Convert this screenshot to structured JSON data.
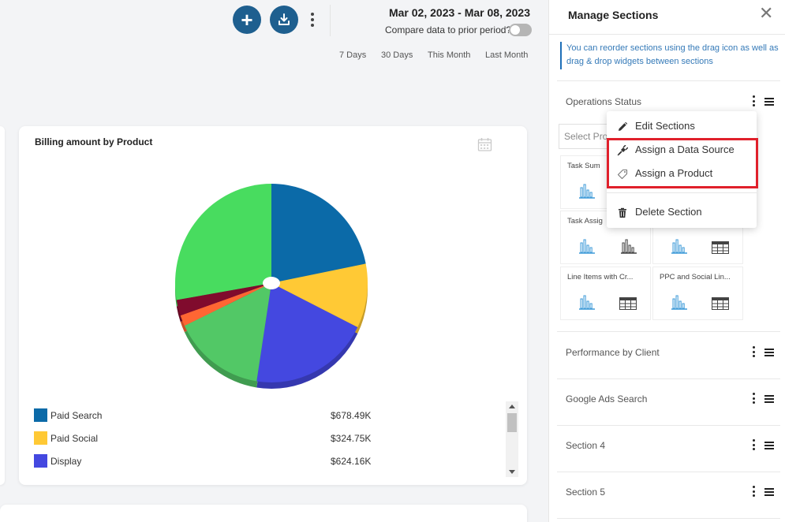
{
  "toolbar": {
    "add_icon": "plus-icon",
    "export_icon": "download-tray-icon",
    "more_icon": "kebab-icon"
  },
  "date_filter": {
    "range": "Mar 02, 2023 - Mar 08, 2023",
    "compare_label": "Compare data to prior period?",
    "compare_enabled": false,
    "quick_ranges": [
      "7 Days",
      "30 Days",
      "This Month",
      "Last Month"
    ]
  },
  "widget": {
    "title": "Billing amount by Product",
    "calendar_icon": "calendar-icon"
  },
  "chart_data": {
    "type": "pie",
    "title": "Billing amount by Product",
    "legend_position": "bottom",
    "slices": [
      {
        "name": "Paid Search",
        "value": 678.49,
        "label": "$678.49K",
        "color": "#0b6aa8"
      },
      {
        "name": "Paid Social",
        "value": 324.75,
        "label": "$324.75K",
        "color": "#ffc935"
      },
      {
        "name": "Display",
        "value": 624.16,
        "label": "$624.16K",
        "color": "#4448e0"
      },
      {
        "name": "",
        "value": 480,
        "color": "#52c866"
      },
      {
        "name": "",
        "value": 55,
        "color": "#ff6633"
      },
      {
        "name": "",
        "value": 80,
        "color": "#800b2d"
      },
      {
        "name": "",
        "value": 860,
        "color": "#48dc5f"
      }
    ]
  },
  "panel": {
    "title": "Manage Sections",
    "info": "You can reorder sections using the drag icon as well as drag & drop widgets between sections",
    "sections": [
      {
        "title": "Operations Status"
      },
      {
        "title": "Performance by Client"
      },
      {
        "title": "Google Ads Search"
      },
      {
        "title": "Section 4"
      },
      {
        "title": "Section 5"
      }
    ],
    "select_placeholder": "Select Pro",
    "widgets": [
      {
        "title": "Task Sum"
      },
      {
        "title": "Task Assig"
      },
      {
        "title": ""
      },
      {
        "title": "Line Items with Cr..."
      },
      {
        "title": "PPC and Social Lin..."
      }
    ]
  },
  "context_menu": {
    "items": [
      {
        "label": "Edit Sections",
        "icon": "pencil-icon"
      },
      {
        "label": "Assign a Data Source",
        "icon": "plug-icon"
      },
      {
        "label": "Assign a Product",
        "icon": "tag-icon"
      },
      {
        "label": "Delete Section",
        "icon": "trash-icon"
      }
    ],
    "highlight_color": "#e0202b"
  }
}
